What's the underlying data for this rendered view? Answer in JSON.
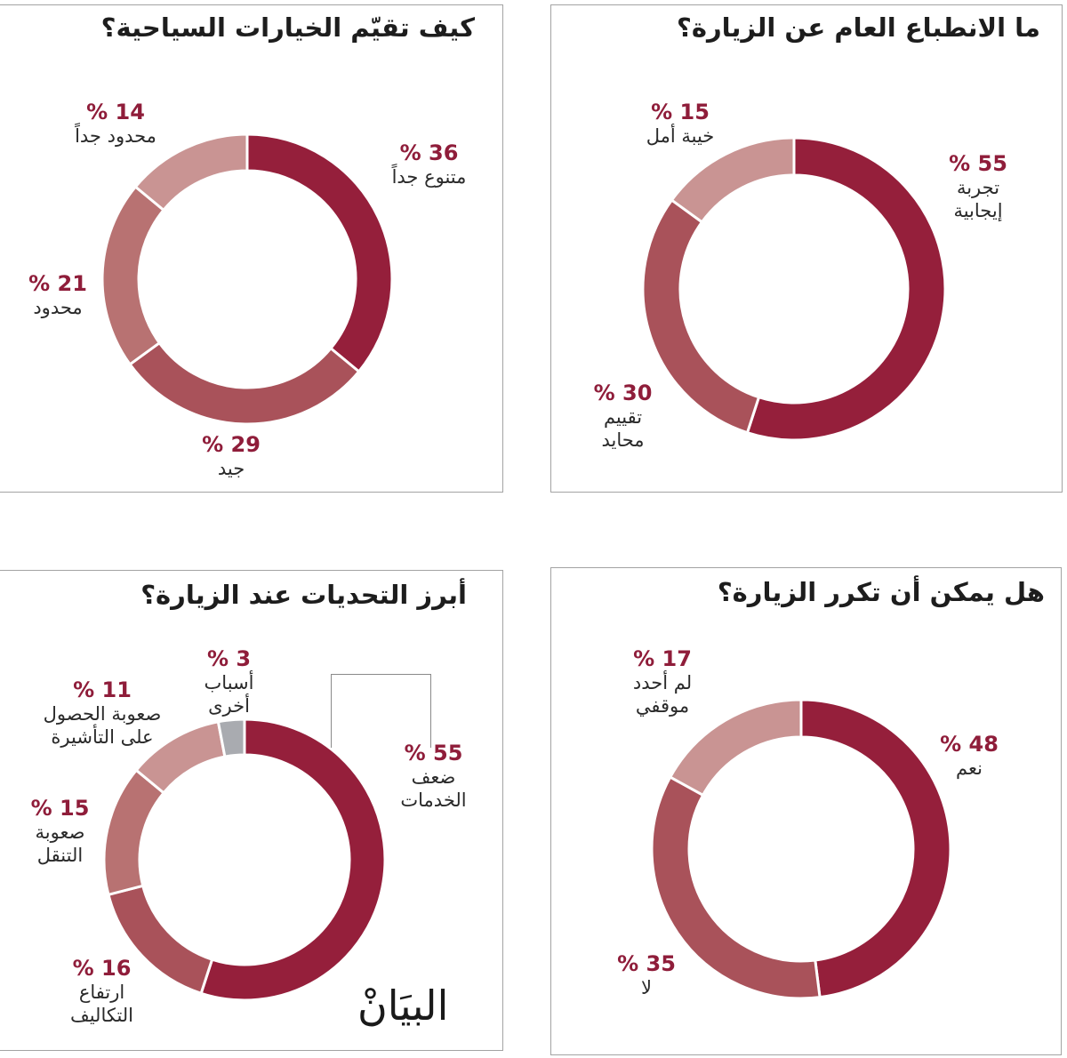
{
  "colors": {
    "dark": "#951f3b",
    "medium": "#a9525a",
    "medium_light": "#b87272",
    "light": "#c99493",
    "gray": "#a9abb0",
    "percent_text": "#8f1d3a"
  },
  "panels": {
    "top_left": {
      "title": "كيف تقيّم الخيارات السياحية؟",
      "labels": [
        {
          "pct": "% 36",
          "cat": "متنوع جداً"
        },
        {
          "pct": "% 29",
          "cat": "جيد"
        },
        {
          "pct": "% 21",
          "cat": "محدود"
        },
        {
          "pct": "% 14",
          "cat": "محدود جداً"
        }
      ]
    },
    "top_right": {
      "title": "ما الانطباع العام عن الزيارة؟",
      "labels": [
        {
          "pct": "% 55",
          "cat1": "تجربة",
          "cat2": "إيجابية"
        },
        {
          "pct": "% 30",
          "cat1": "تقييم",
          "cat2": "محايد"
        },
        {
          "pct": "% 15",
          "cat": "خيبة أمل"
        }
      ]
    },
    "bottom_left": {
      "title": "أبرز التحديات عند الزيارة؟",
      "labels": [
        {
          "pct": "% 55",
          "cat1": "ضعف",
          "cat2": "الخدمات"
        },
        {
          "pct": "% 16",
          "cat1": "ارتفاع",
          "cat2": "التكاليف"
        },
        {
          "pct": "% 15",
          "cat1": "صعوبة",
          "cat2": "التنقل"
        },
        {
          "pct": "% 11",
          "cat1": "صعوبة الحصول",
          "cat2": "على التأشيرة"
        },
        {
          "pct": "% 3",
          "cat1": "أسباب",
          "cat2": "أخرى"
        }
      ],
      "logo": "البيَانْ"
    },
    "bottom_right": {
      "title": "هل يمكن أن تكرر الزيارة؟",
      "labels": [
        {
          "pct": "% 48",
          "cat": "نعم"
        },
        {
          "pct": "% 35",
          "cat": "لا"
        },
        {
          "pct": "% 17",
          "cat1": "لم أحدد",
          "cat2": "موقفي"
        }
      ]
    }
  },
  "chart_data": [
    {
      "type": "pie",
      "subtype": "donut",
      "title": "كيف تقيّم الخيارات السياحية؟",
      "categories": [
        "متنوع جداً",
        "جيد",
        "محدود",
        "محدود جداً"
      ],
      "values": [
        36,
        29,
        21,
        14
      ],
      "unit": "%",
      "colors": [
        "#951f3b",
        "#a9525a",
        "#b87272",
        "#c99493"
      ],
      "direction": "clockwise-from-top"
    },
    {
      "type": "pie",
      "subtype": "donut",
      "title": "ما الانطباع العام عن الزيارة؟",
      "categories": [
        "تجربة إيجابية",
        "تقييم محايد",
        "خيبة أمل"
      ],
      "values": [
        55,
        30,
        15
      ],
      "unit": "%",
      "colors": [
        "#951f3b",
        "#a9525a",
        "#c99493"
      ],
      "direction": "clockwise-from-top"
    },
    {
      "type": "pie",
      "subtype": "donut",
      "title": "أبرز التحديات عند الزيارة؟",
      "categories": [
        "ضعف الخدمات",
        "ارتفاع التكاليف",
        "صعوبة التنقل",
        "صعوبة الحصول على التأشيرة",
        "أسباب أخرى"
      ],
      "values": [
        55,
        16,
        15,
        11,
        3
      ],
      "unit": "%",
      "colors": [
        "#951f3b",
        "#a9525a",
        "#b87272",
        "#c99493",
        "#a9abb0"
      ],
      "direction": "clockwise-from-top"
    },
    {
      "type": "pie",
      "subtype": "donut",
      "title": "هل يمكن أن تكرر الزيارة؟",
      "categories": [
        "نعم",
        "لا",
        "لم أحدد موقفي"
      ],
      "values": [
        48,
        35,
        17
      ],
      "unit": "%",
      "colors": [
        "#951f3b",
        "#a9525a",
        "#c99493"
      ],
      "direction": "clockwise-from-top"
    }
  ]
}
